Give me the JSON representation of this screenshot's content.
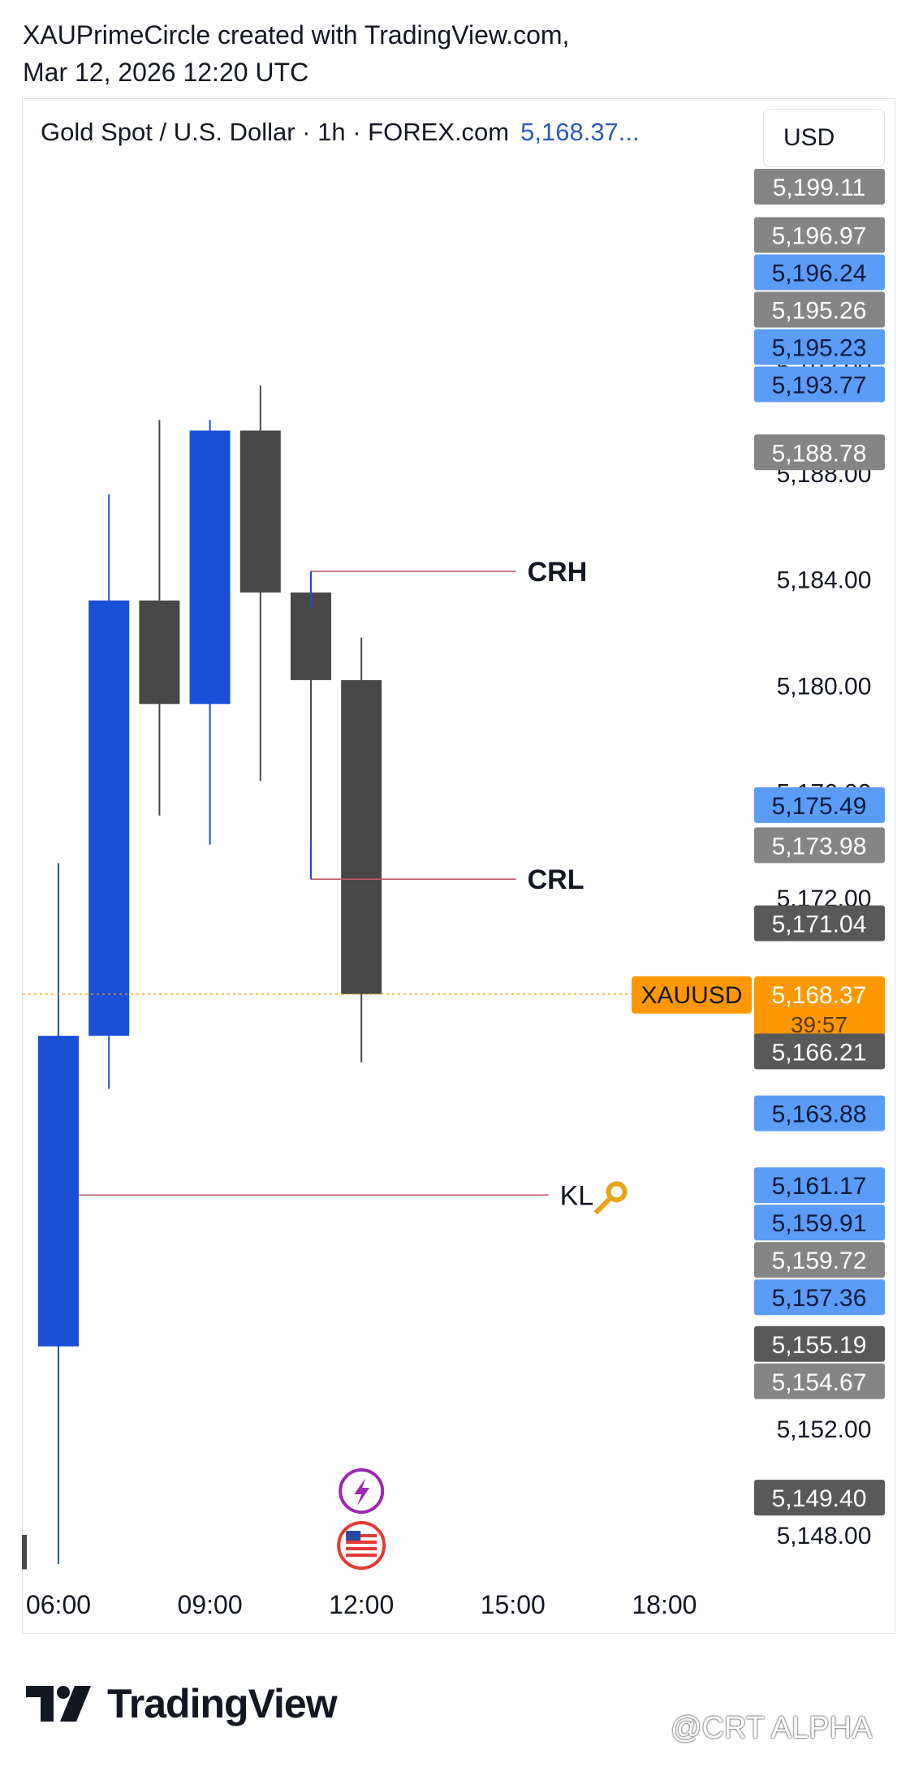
{
  "header": {
    "line1": "XAUPrimeCircle created with TradingView.com,",
    "line2": "Mar 12, 2026 12:20 UTC"
  },
  "legend": {
    "title": "Gold Spot / U.S. Dollar · 1h · FOREX.com",
    "last_price": "5,168.37..."
  },
  "currency_button": "USD",
  "footer": {
    "brand": "TradingView",
    "watermark": "@CRT ALPHA"
  },
  "colors": {
    "bull_candle": "#1a4fd6",
    "bear_candle": "#474747",
    "level_line": "#c2566a",
    "price_line": "#ff9800",
    "label_blue": "#5b9cf8",
    "label_gray": "#858585",
    "label_dark": "#595959"
  },
  "icons": [
    "lightning-event-icon",
    "us-flag-event-icon",
    "key-icon",
    "tradingview-logo-icon"
  ],
  "chart_data": {
    "type": "candlestick",
    "timeframe": "1h",
    "x_ticks": [
      "06:00",
      "09:00",
      "12:00",
      "15:00",
      "18:00"
    ],
    "y_ticks": [
      "5,192.00",
      "5,188.00",
      "5,184.00",
      "5,180.00",
      "5,176.00",
      "5,172.00",
      "5,152.00",
      "5,148.00"
    ],
    "ylim": [
      5146.5,
      5199.4
    ],
    "candles": [
      {
        "time": "05:00",
        "open": 5148.0,
        "high": 5148.0,
        "low": 5146.7,
        "close": 5146.7,
        "partial": true
      },
      {
        "time": "06:00",
        "open": 5155.1,
        "high": 5173.3,
        "low": 5146.9,
        "close": 5166.8
      },
      {
        "time": "07:00",
        "open": 5166.8,
        "high": 5187.2,
        "low": 5164.8,
        "close": 5183.2
      },
      {
        "time": "08:00",
        "open": 5183.2,
        "high": 5190.0,
        "low": 5175.1,
        "close": 5179.3
      },
      {
        "time": "09:00",
        "open": 5179.3,
        "high": 5190.0,
        "low": 5174.0,
        "close": 5189.6
      },
      {
        "time": "10:00",
        "open": 5189.6,
        "high": 5191.3,
        "low": 5176.4,
        "close": 5183.5
      },
      {
        "time": "11:00",
        "open": 5183.5,
        "high": 5184.3,
        "low": 5172.7,
        "close": 5180.2
      },
      {
        "time": "12:00",
        "open": 5180.2,
        "high": 5181.8,
        "low": 5165.8,
        "close": 5168.37
      }
    ],
    "levels": [
      {
        "label": "CRH",
        "price": 5184.3,
        "from_time": "11:00",
        "to_time": "14:00"
      },
      {
        "label": "CRL",
        "price": 5172.7,
        "from_time": "11:00",
        "to_time": "14:00"
      },
      {
        "label": "KL",
        "price": 5160.8,
        "from_time": "06:00",
        "to_time": "14:00",
        "icon": "key-icon"
      }
    ],
    "current_price": {
      "symbol": "XAUUSD",
      "price": "5,168.37",
      "countdown": "39:57"
    },
    "price_labels": [
      {
        "text": "5,199.11",
        "style": "gray"
      },
      {
        "text": "5,196.97",
        "style": "gray"
      },
      {
        "text": "5,196.24",
        "style": "blue"
      },
      {
        "text": "5,195.26",
        "style": "gray"
      },
      {
        "text": "5,195.23",
        "style": "blue"
      },
      {
        "text": "5,193.77",
        "style": "blue"
      },
      {
        "text": "5,188.78",
        "style": "gray"
      },
      {
        "text": "5,175.49",
        "style": "blue"
      },
      {
        "text": "5,173.98",
        "style": "gray"
      },
      {
        "text": "5,171.04",
        "style": "dark"
      },
      {
        "text": "5,166.21",
        "style": "dark"
      },
      {
        "text": "5,163.88",
        "style": "blue"
      },
      {
        "text": "5,161.17",
        "style": "blue"
      },
      {
        "text": "5,159.91",
        "style": "blue"
      },
      {
        "text": "5,159.72",
        "style": "gray"
      },
      {
        "text": "5,157.36",
        "style": "blue"
      },
      {
        "text": "5,155.19",
        "style": "dark"
      },
      {
        "text": "5,154.67",
        "style": "gray"
      },
      {
        "text": "5,149.40",
        "style": "dark"
      }
    ]
  }
}
